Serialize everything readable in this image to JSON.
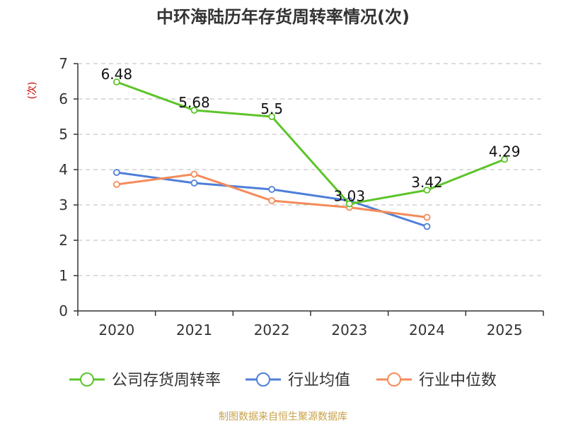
{
  "chart_data": {
    "type": "line",
    "title": "中环海陆历年存货周转率情况(次)",
    "ylabel": "(次)",
    "xlabel": "",
    "categories": [
      "2020",
      "2021",
      "2022",
      "2023",
      "2024",
      "2025"
    ],
    "ylim": [
      0,
      7
    ],
    "yticks": [
      0,
      1,
      2,
      3,
      4,
      5,
      6,
      7
    ],
    "grid": true,
    "legend_position": "bottom",
    "series": [
      {
        "name": "公司存货周转率",
        "color": "#5dc42a",
        "values": [
          6.48,
          5.68,
          5.5,
          3.03,
          3.42,
          4.29
        ],
        "show_labels": true
      },
      {
        "name": "行业均值",
        "color": "#4e7fd8",
        "values": [
          3.92,
          3.62,
          3.44,
          3.12,
          2.39,
          null
        ],
        "show_labels": false
      },
      {
        "name": "行业中位数",
        "color": "#f48b5a",
        "values": [
          3.58,
          3.87,
          3.12,
          2.93,
          2.65,
          null
        ],
        "show_labels": false
      }
    ],
    "source": "制图数据来自恒生聚源数据库"
  },
  "colors": {
    "axis": "#333333",
    "grid": "#bbbbbb",
    "ylabel": "#cc0000",
    "source": "#c8a24a"
  }
}
